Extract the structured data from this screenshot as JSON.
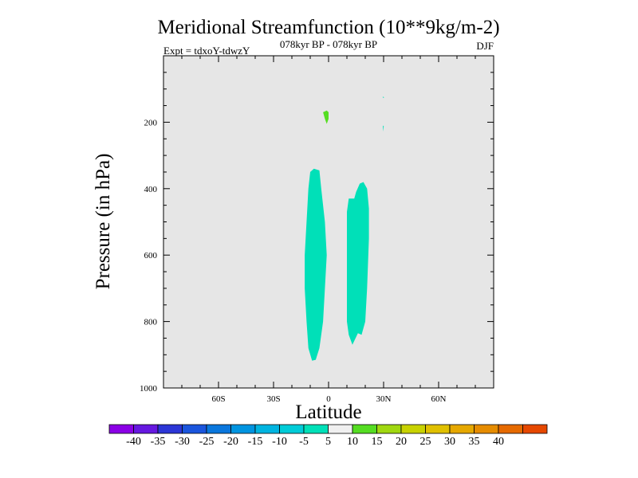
{
  "chart_data": {
    "type": "contour",
    "title": "Meridional Streamfunction (10**9kg/m-2)",
    "subtitle": "078kyr BP - 078kyr BP",
    "left_label": "Expt = tdxoY-tdwzY",
    "right_label": "DJF",
    "xlabel": "Latitude",
    "ylabel": "Pressure (in hPa)",
    "xlim": [
      -90,
      90
    ],
    "ylim": [
      1000,
      0
    ],
    "y_reversed": true,
    "xticks": [
      {
        "value": -60,
        "label": "60S"
      },
      {
        "value": -30,
        "label": "30S"
      },
      {
        "value": 0,
        "label": "0"
      },
      {
        "value": 30,
        "label": "30N"
      },
      {
        "value": 60,
        "label": "60N"
      }
    ],
    "yticks": [
      {
        "value": 200,
        "label": "200"
      },
      {
        "value": 400,
        "label": "400"
      },
      {
        "value": 600,
        "label": "600"
      },
      {
        "value": 800,
        "label": "800"
      },
      {
        "value": 1000,
        "label": "1000"
      }
    ],
    "background_color": "#e6e6e6",
    "regions": [
      {
        "level": "-10 to -5",
        "color": "#00e0b8",
        "points": [
          [
            -8,
            340
          ],
          [
            -5,
            345
          ],
          [
            -4,
            400
          ],
          [
            -2,
            500
          ],
          [
            -1,
            600
          ],
          [
            -2,
            700
          ],
          [
            -3,
            800
          ],
          [
            -5,
            880
          ],
          [
            -7,
            915
          ],
          [
            -9,
            918
          ],
          [
            -11,
            880
          ],
          [
            -12,
            800
          ],
          [
            -13,
            700
          ],
          [
            -13,
            600
          ],
          [
            -12,
            500
          ],
          [
            -11,
            400
          ],
          [
            -10,
            350
          ]
        ]
      },
      {
        "level": "-10 to -5",
        "color": "#00e0b8",
        "points": [
          [
            11,
            430
          ],
          [
            14,
            430
          ],
          [
            15,
            410
          ],
          [
            17,
            385
          ],
          [
            19,
            380
          ],
          [
            21,
            400
          ],
          [
            22,
            460
          ],
          [
            22,
            550
          ],
          [
            21,
            700
          ],
          [
            20,
            800
          ],
          [
            18,
            840
          ],
          [
            16,
            835
          ],
          [
            13,
            870
          ],
          [
            11,
            840
          ],
          [
            10,
            800
          ],
          [
            10,
            600
          ],
          [
            10,
            470
          ]
        ]
      },
      {
        "level": "-10 to -5",
        "color": "#00e0b8",
        "points": [
          [
            29.5,
            123
          ],
          [
            30.3,
            125
          ],
          [
            29.8,
            127
          ]
        ]
      },
      {
        "level": "-10 to -5",
        "color": "#00e0b8",
        "points": [
          [
            29.6,
            210
          ],
          [
            30.1,
            212
          ],
          [
            29.8,
            228
          ]
        ]
      },
      {
        "level": "5 to 10",
        "color": "#55dd22",
        "points": [
          [
            -3,
            170
          ],
          [
            -1,
            165
          ],
          [
            0,
            170
          ],
          [
            0,
            190
          ],
          [
            -1,
            205
          ],
          [
            -2,
            190
          ]
        ]
      }
    ],
    "colorbar": {
      "colors": [
        "#8b00e6",
        "#6618e0",
        "#2c36d6",
        "#1a55dd",
        "#0a77dd",
        "#0094e0",
        "#00b4e0",
        "#00ccd8",
        "#00e0b8",
        "#f0f0f0",
        "#55dd22",
        "#a0d810",
        "#c8d200",
        "#e0c000",
        "#e6a800",
        "#e68c00",
        "#e66a00",
        "#e64800"
      ],
      "labels": [
        "-40",
        "-35",
        "-30",
        "-25",
        "-20",
        "-15",
        "-10",
        "-5",
        "5",
        "10",
        "15",
        "20",
        "25",
        "30",
        "35",
        "40"
      ]
    }
  }
}
